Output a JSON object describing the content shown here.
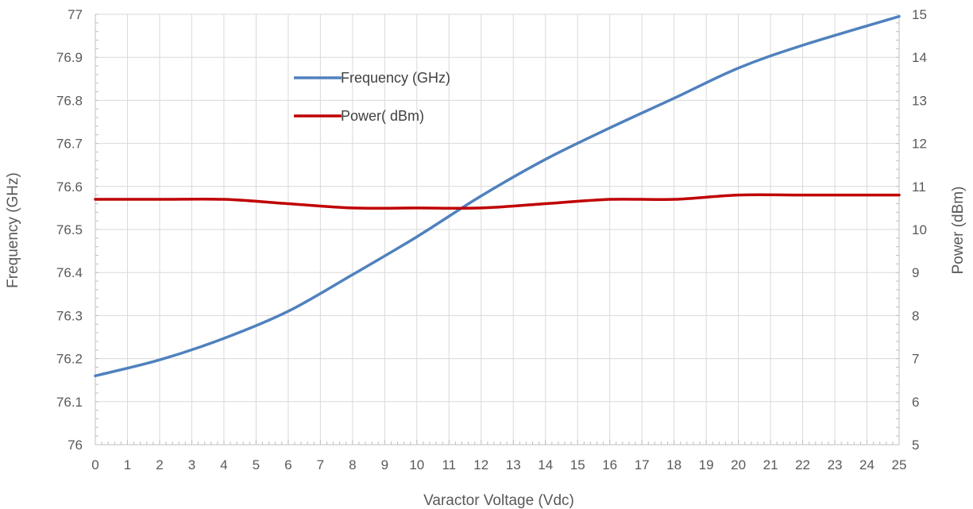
{
  "chart_data": {
    "type": "line",
    "title": "",
    "xlabel": "Varactor Voltage (Vdc)",
    "ylabel_left": "Frequency (GHz)",
    "ylabel_right": "Power (dBm)",
    "xlim": [
      0,
      25
    ],
    "ylim_left": [
      76,
      77
    ],
    "ylim_right": [
      5,
      15
    ],
    "x_ticks": [
      "0",
      "1",
      "2",
      "3",
      "4",
      "5",
      "6",
      "7",
      "8",
      "9",
      "10",
      "11",
      "12",
      "13",
      "14",
      "15",
      "16",
      "17",
      "18",
      "19",
      "20",
      "21",
      "22",
      "23",
      "24",
      "25"
    ],
    "y_left_ticks": [
      "76",
      "76.1",
      "76.2",
      "76.3",
      "76.4",
      "76.5",
      "76.6",
      "76.7",
      "76.8",
      "76.9",
      "77"
    ],
    "y_right_ticks": [
      "5",
      "6",
      "7",
      "8",
      "9",
      "10",
      "11",
      "12",
      "13",
      "14",
      "15"
    ],
    "grid": true,
    "legend_position": "upper-center-left",
    "x": [
      0,
      2,
      4,
      6,
      8,
      10,
      12,
      14,
      16,
      18,
      20,
      22,
      25
    ],
    "series": [
      {
        "name": "Frequency (GHz)",
        "axis": "left",
        "color": "#4f81bd",
        "values": [
          76.16,
          76.197,
          76.247,
          76.31,
          76.395,
          76.483,
          76.578,
          76.663,
          76.736,
          76.805,
          76.875,
          76.928,
          76.995
        ]
      },
      {
        "name": "Power( dBm)",
        "axis": "right",
        "color": "#c00000",
        "values": [
          10.7,
          10.7,
          10.7,
          10.6,
          10.5,
          10.5,
          10.5,
          10.6,
          10.7,
          10.7,
          10.8,
          10.8,
          10.8
        ]
      }
    ]
  }
}
